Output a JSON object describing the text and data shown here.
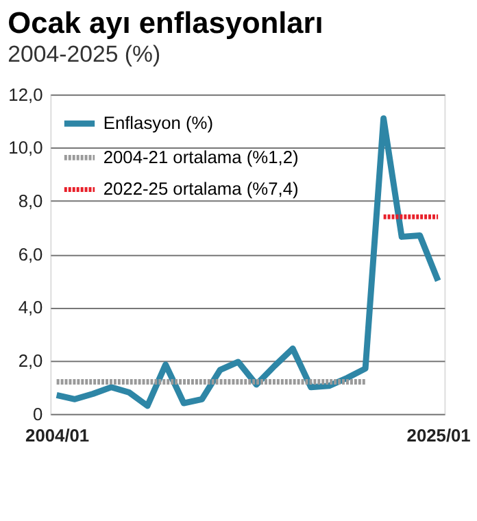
{
  "chart_data": {
    "type": "line",
    "title": "Ocak ayı enflasyonları",
    "subtitle": "2004-2025 (%)",
    "categories": [
      "2004/01",
      null,
      null,
      null,
      null,
      null,
      null,
      null,
      null,
      null,
      null,
      null,
      null,
      null,
      null,
      null,
      null,
      null,
      null,
      null,
      null,
      "2025/01"
    ],
    "series": [
      {
        "name": "Enflasyon (%)",
        "color": "#2e86a6",
        "line_style": "solid",
        "values": [
          0.7,
          0.55,
          0.75,
          1.0,
          0.8,
          0.3,
          1.85,
          0.4,
          0.55,
          1.65,
          1.95,
          1.1,
          1.8,
          2.45,
          1.0,
          1.05,
          1.35,
          1.7,
          11.1,
          6.65,
          6.7,
          5.0
        ]
      },
      {
        "name": "2004-21 ortalama (%1,2)",
        "color": "#9a9a9a",
        "line_style": "dotted",
        "values": [
          1.2,
          1.2,
          1.2,
          1.2,
          1.2,
          1.2,
          1.2,
          1.2,
          1.2,
          1.2,
          1.2,
          1.2,
          1.2,
          1.2,
          1.2,
          1.2,
          1.2,
          1.2,
          null,
          null,
          null,
          null
        ]
      },
      {
        "name": "2022-25 ortalama (%7,4)",
        "color": "#e8202a",
        "line_style": "dotted",
        "values": [
          null,
          null,
          null,
          null,
          null,
          null,
          null,
          null,
          null,
          null,
          null,
          null,
          null,
          null,
          null,
          null,
          null,
          null,
          7.4,
          7.4,
          7.4,
          7.4
        ]
      }
    ],
    "ylim": [
      0,
      12
    ],
    "yticks": [
      {
        "value": 0,
        "label": "0"
      },
      {
        "value": 2,
        "label": "2,0"
      },
      {
        "value": 4,
        "label": "4,0"
      },
      {
        "value": 6,
        "label": "6,0"
      },
      {
        "value": 8,
        "label": "8,0"
      },
      {
        "value": 10,
        "label": "10,0"
      },
      {
        "value": 12,
        "label": "12,0"
      }
    ],
    "grid": "y",
    "legend": "top left"
  }
}
